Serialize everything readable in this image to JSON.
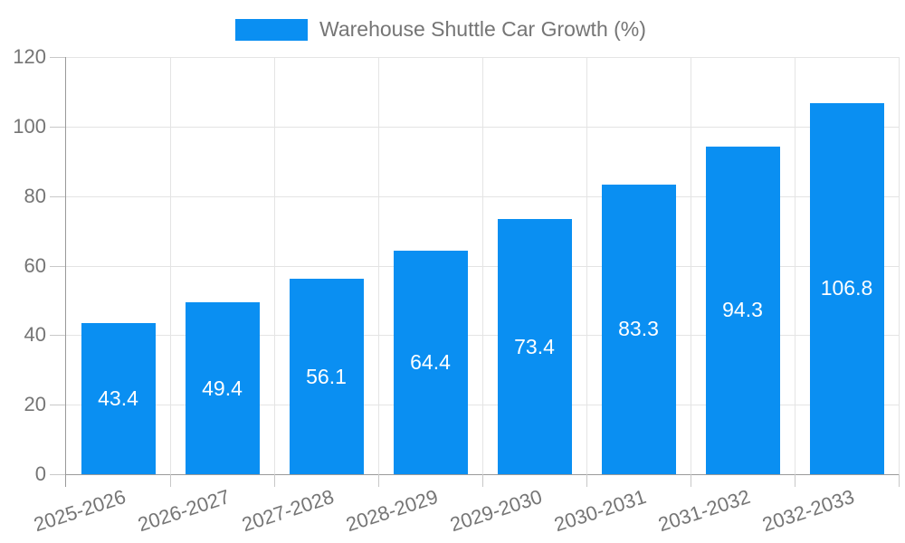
{
  "legend": {
    "label": "Warehouse Shuttle Car Growth (%)",
    "swatch_color": "#0a8ff2"
  },
  "chart_data": {
    "type": "bar",
    "title": "Warehouse Shuttle Car Growth (%)",
    "categories": [
      "2025-2026",
      "2026-2027",
      "2027-2028",
      "2028-2029",
      "2029-2030",
      "2030-2031",
      "2031-2032",
      "2032-2033"
    ],
    "values": [
      43.4,
      49.4,
      56.1,
      64.4,
      73.4,
      83.3,
      94.3,
      106.8
    ],
    "series": [
      {
        "name": "Warehouse Shuttle Car Growth (%)",
        "values": [
          43.4,
          49.4,
          56.1,
          64.4,
          73.4,
          83.3,
          94.3,
          106.8
        ]
      }
    ],
    "xlabel": "",
    "ylabel": "",
    "ylim": [
      0,
      120
    ],
    "yticks": [
      0,
      20,
      40,
      60,
      80,
      100,
      120
    ],
    "grid": true,
    "legend_position": "top-center",
    "value_labels": "inside-center",
    "x_tick_rotation_deg": 18
  },
  "colors": {
    "bar": "#0a8ff2",
    "grid": "#e4e4e4",
    "axis": "#9a9a9a",
    "tick": "#c8c8c8",
    "tick_label": "#757575",
    "legend_text": "#757575",
    "value_label": "#ffffff",
    "background": "#ffffff"
  }
}
